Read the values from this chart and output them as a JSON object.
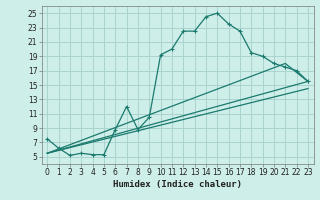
{
  "xlabel": "Humidex (Indice chaleur)",
  "bg_color": "#ceeee9",
  "grid_color": "#aad4cf",
  "line_color": "#1a7a6e",
  "xlim": [
    -0.5,
    23.5
  ],
  "ylim": [
    4.0,
    26.0
  ],
  "xticks": [
    0,
    1,
    2,
    3,
    4,
    5,
    6,
    7,
    8,
    9,
    10,
    11,
    12,
    13,
    14,
    15,
    16,
    17,
    18,
    19,
    20,
    21,
    22,
    23
  ],
  "yticks": [
    5,
    7,
    9,
    11,
    13,
    15,
    17,
    19,
    21,
    23,
    25
  ],
  "series1_x": [
    0,
    1,
    2,
    3,
    4,
    5,
    6,
    7,
    8,
    9,
    10,
    11,
    12,
    13,
    14,
    15,
    16,
    17,
    18,
    19,
    20,
    21,
    22,
    23
  ],
  "series1_y": [
    7.5,
    6.2,
    5.2,
    5.5,
    5.3,
    5.3,
    8.8,
    12.0,
    8.8,
    10.5,
    19.2,
    20.0,
    22.5,
    22.5,
    24.5,
    25.0,
    23.5,
    22.5,
    19.5,
    19.0,
    18.0,
    17.5,
    17.0,
    15.5
  ],
  "series2_x": [
    0,
    21,
    23
  ],
  "series2_y": [
    5.5,
    18.0,
    15.5
  ],
  "series3_x": [
    0,
    23
  ],
  "series3_y": [
    5.5,
    15.5
  ],
  "series4_x": [
    0,
    23
  ],
  "series4_y": [
    5.5,
    14.5
  ],
  "tick_fontsize": 5.5,
  "xlabel_fontsize": 6.5
}
